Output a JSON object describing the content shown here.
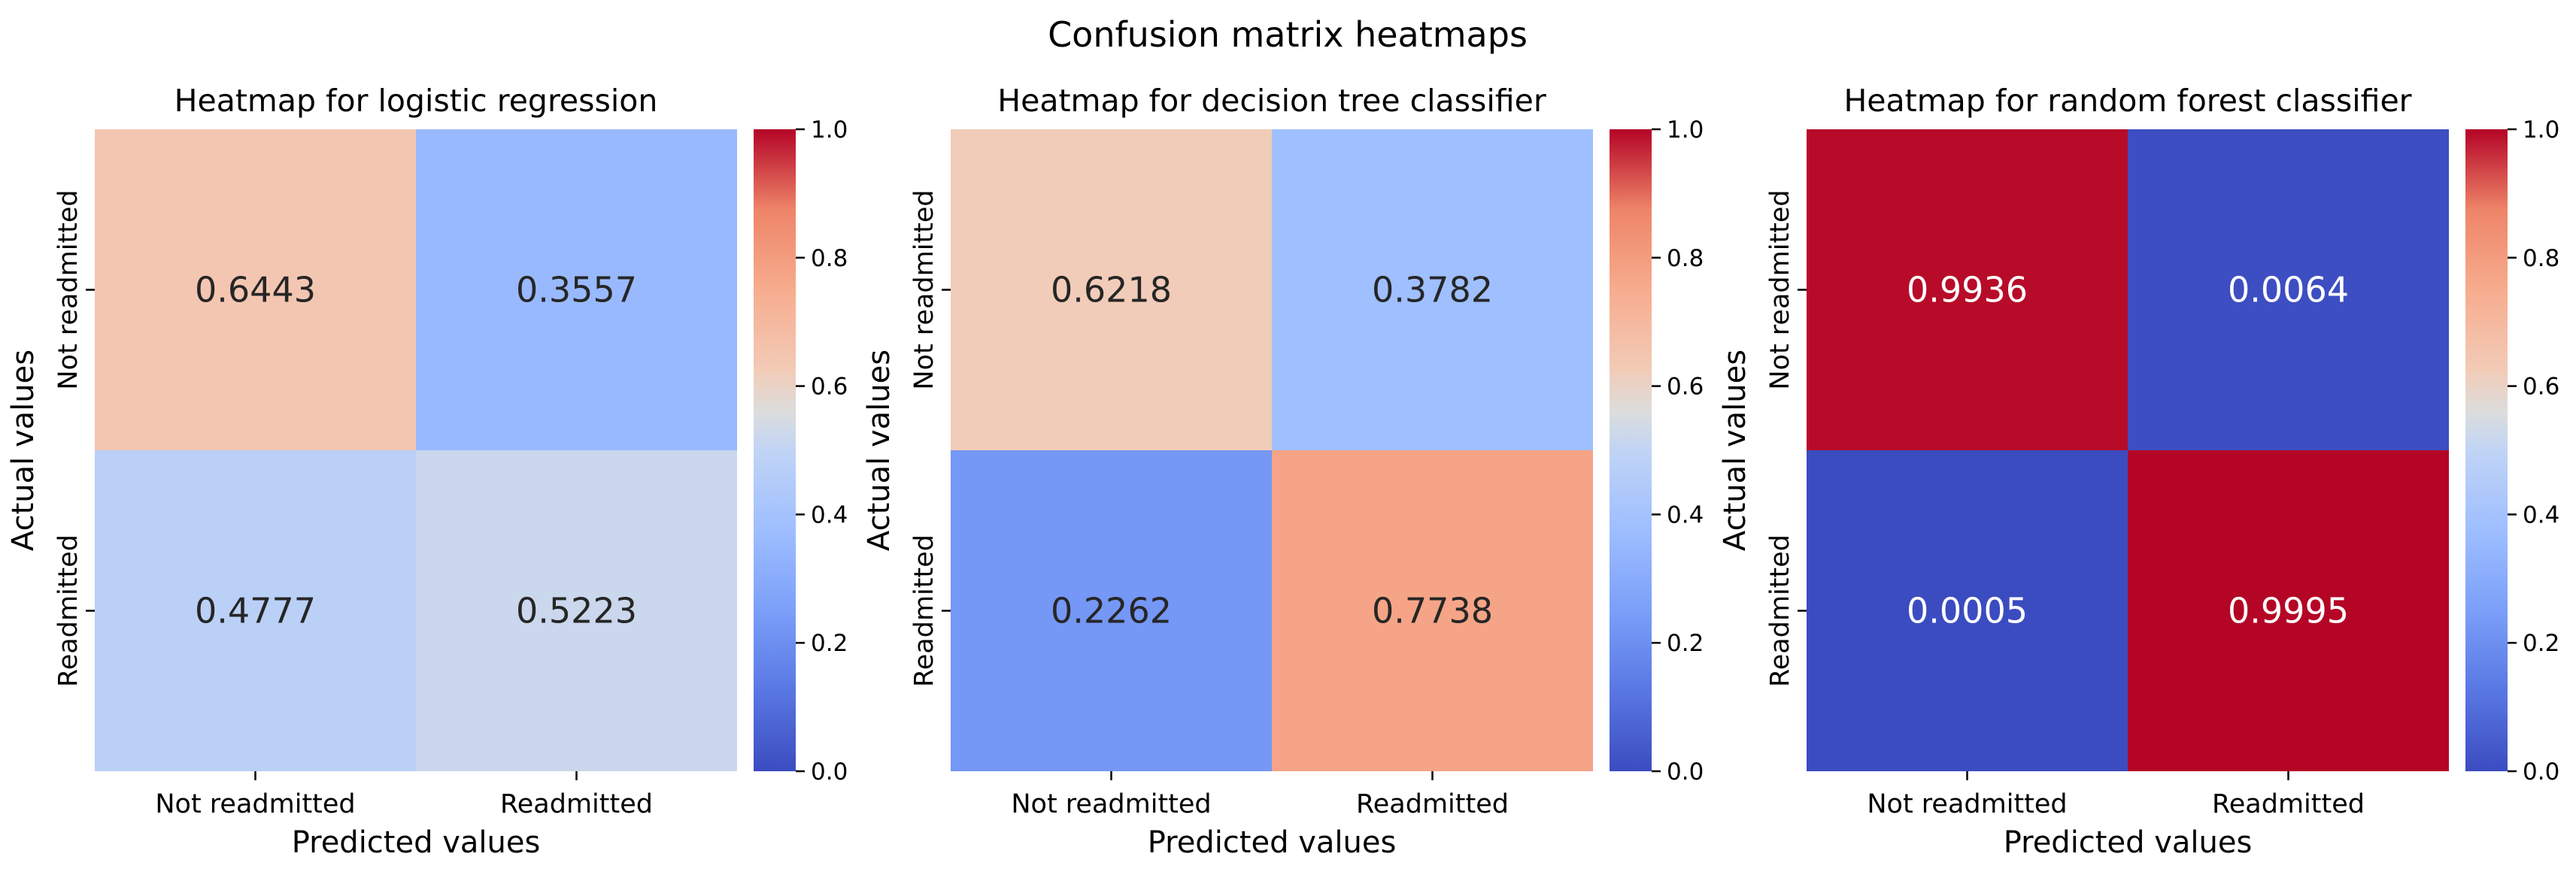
{
  "figure": {
    "suptitle": "Confusion matrix heatmaps"
  },
  "chart_data": [
    {
      "type": "heatmap",
      "title": "Heatmap for logistic regression",
      "xlabel": "Predicted values",
      "ylabel": "Actual values",
      "x_categories": [
        "Not readmitted",
        "Readmitted"
      ],
      "y_categories": [
        "Not readmitted",
        "Readmitted"
      ],
      "values": [
        [
          0.6443,
          0.3557
        ],
        [
          0.4777,
          0.5223
        ]
      ],
      "value_labels": [
        [
          "0.6443",
          "0.3557"
        ],
        [
          "0.4777",
          "0.5223"
        ]
      ],
      "colormap": "coolwarm",
      "vmin": 0.0,
      "vmax": 1.0,
      "colorbar_ticks": [
        "0.0",
        "0.2",
        "0.4",
        "0.6",
        "0.8",
        "1.0"
      ]
    },
    {
      "type": "heatmap",
      "title": "Heatmap for decision tree classifier",
      "xlabel": "Predicted values",
      "ylabel": "Actual values",
      "x_categories": [
        "Not readmitted",
        "Readmitted"
      ],
      "y_categories": [
        "Not readmitted",
        "Readmitted"
      ],
      "values": [
        [
          0.6218,
          0.3782
        ],
        [
          0.2262,
          0.7738
        ]
      ],
      "value_labels": [
        [
          "0.6218",
          "0.3782"
        ],
        [
          "0.2262",
          "0.7738"
        ]
      ],
      "colormap": "coolwarm",
      "vmin": 0.0,
      "vmax": 1.0,
      "colorbar_ticks": [
        "0.0",
        "0.2",
        "0.4",
        "0.6",
        "0.8",
        "1.0"
      ]
    },
    {
      "type": "heatmap",
      "title": "Heatmap for random forest classifier",
      "xlabel": "Predicted values",
      "ylabel": "Actual values",
      "x_categories": [
        "Not readmitted",
        "Readmitted"
      ],
      "y_categories": [
        "Not readmitted",
        "Readmitted"
      ],
      "values": [
        [
          0.9936,
          0.0064
        ],
        [
          0.0005,
          0.9995
        ]
      ],
      "value_labels": [
        [
          "0.9936",
          "0.0064"
        ],
        [
          "0.0005",
          "0.9995"
        ]
      ],
      "colormap": "coolwarm",
      "vmin": 0.0,
      "vmax": 1.0,
      "colorbar_ticks": [
        "0.0",
        "0.2",
        "0.4",
        "0.6",
        "0.8",
        "1.0"
      ]
    }
  ]
}
